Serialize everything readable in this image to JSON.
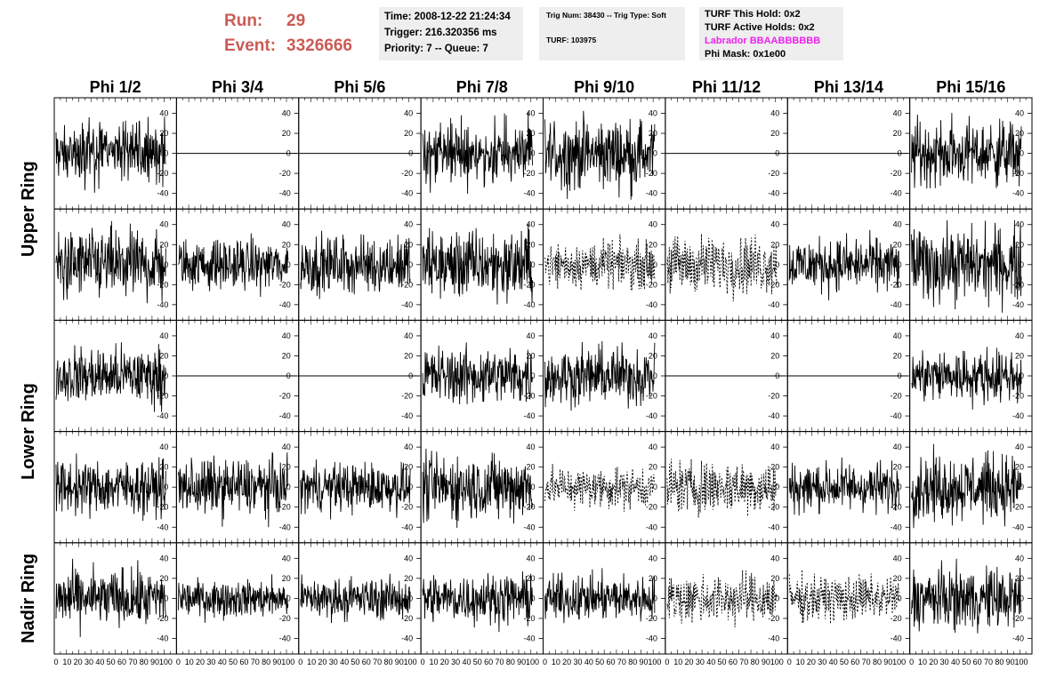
{
  "header": {
    "run_label": "Run:",
    "run_value": "29",
    "event_label": "Event:",
    "event_value": "3326666",
    "time": "Time: 2008-12-22 21:24:34",
    "trigger": "Trigger: 216.320356 ms",
    "priority": "Priority: 7 -- Queue: 7",
    "trig_num": "Trig Num: 38430 -- Trig Type: Soft",
    "turf": "TURF: 103975",
    "turf_this_hold": "TURF This Hold: 0x2",
    "turf_active_holds": "TURF Active Holds: 0x2",
    "labrador": "Labrador BBAABBBBBB",
    "phi_mask": "Phi Mask: 0x1e00"
  },
  "colors": {
    "run_text": "#cc5a55",
    "labrador_text": "#ee22ee",
    "info_bg": "#eeeeee"
  },
  "chart_data": {
    "type": "line",
    "columns": [
      "Phi 1/2",
      "Phi 3/4",
      "Phi 5/6",
      "Phi 7/8",
      "Phi 9/10",
      "Phi 11/12",
      "Phi 13/14",
      "Phi 15/16"
    ],
    "rows": [
      "Upper Ring",
      "Upper Ring",
      "Lower Ring",
      "Lower Ring",
      "Nadir Ring"
    ],
    "row_labels": [
      {
        "text": "Upper Ring"
      },
      {
        "text": "Lower Ring"
      },
      {
        "text": "Nadir Ring"
      }
    ],
    "xlim": [
      0,
      100
    ],
    "ylim": [
      -50,
      50
    ],
    "xticks": [
      "0",
      "10",
      "20",
      "30",
      "40",
      "50",
      "60",
      "70",
      "80",
      "90",
      "100"
    ],
    "yticks": [
      "40",
      "20",
      "0",
      "-20",
      "-40"
    ],
    "panel_amplitude": [
      [
        15,
        0,
        0,
        15,
        17,
        0,
        0,
        16
      ],
      [
        17,
        12,
        14,
        17,
        11,
        14,
        13,
        18
      ],
      [
        14,
        0,
        0,
        14,
        14,
        0,
        0,
        13
      ],
      [
        13,
        14,
        12,
        16,
        10,
        13,
        12,
        16
      ],
      [
        14,
        9,
        10,
        12,
        11,
        12,
        11,
        15
      ]
    ],
    "panel_style": [
      [
        "solid",
        "flat",
        "flat",
        "solid",
        "solid",
        "flat",
        "flat",
        "solid"
      ],
      [
        "solid",
        "solid",
        "solid",
        "solid",
        "dotted",
        "dotted",
        "solid",
        "solid"
      ],
      [
        "solid",
        "flat",
        "flat",
        "solid",
        "solid",
        "flat",
        "flat",
        "solid"
      ],
      [
        "solid",
        "solid",
        "solid",
        "solid",
        "dotted",
        "dotted",
        "solid",
        "solid"
      ],
      [
        "solid",
        "solid",
        "solid",
        "solid",
        "solid",
        "dotted",
        "dotted",
        "solid"
      ]
    ]
  }
}
